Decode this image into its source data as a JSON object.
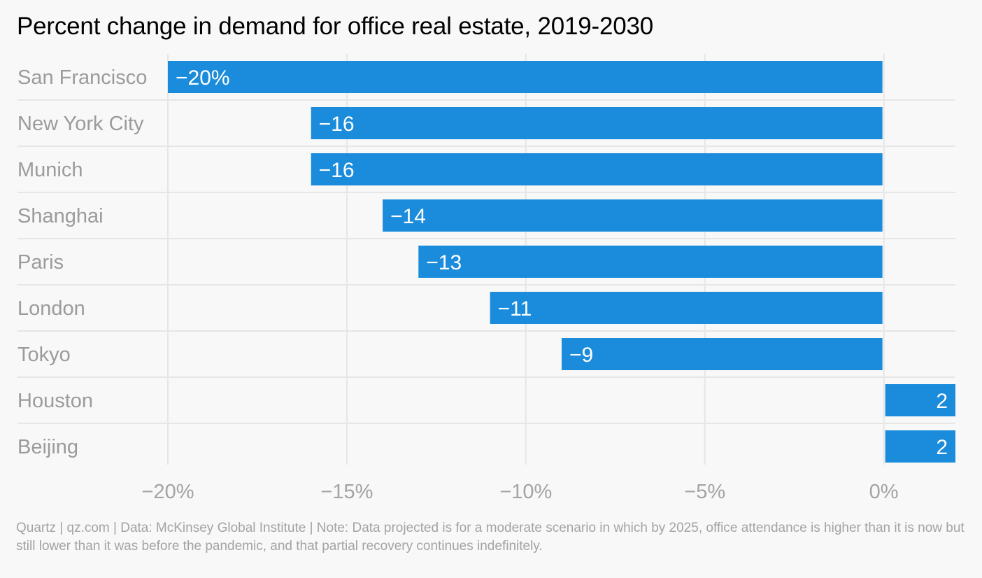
{
  "chart_data": {
    "type": "bar",
    "orientation": "horizontal",
    "title": "Percent change in demand for office real estate, 2019-2030",
    "categories": [
      "San Francisco",
      "New York City",
      "Munich",
      "Shanghai",
      "Paris",
      "London",
      "Tokyo",
      "Houston",
      "Beijing"
    ],
    "values": [
      -20,
      -16,
      -16,
      -14,
      -13,
      -11,
      -9,
      2,
      2
    ],
    "data_labels": [
      "−20%",
      "−16",
      "−16",
      "−14",
      "−13",
      "−11",
      "−9",
      "2",
      "2"
    ],
    "xlim": [
      -20,
      2
    ],
    "x_ticks": [
      -20,
      -15,
      -10,
      -5,
      0
    ],
    "x_tick_labels": [
      "−20%",
      "−15%",
      "−10%",
      "−5%",
      "0%"
    ],
    "grid": true,
    "bar_color": "#1a8cdb",
    "label_color": "#ffffff",
    "category_label_color": "#9b9b9b",
    "grid_color": "#e6e6e6"
  },
  "footnote": "Quartz | qz.com | Data: McKinsey Global Institute | Note: Data projected is for a moderate scenario in which by 2025, office attendance is higher than it is now but still lower than it was before the pandemic, and that partial recovery continues indefinitely."
}
